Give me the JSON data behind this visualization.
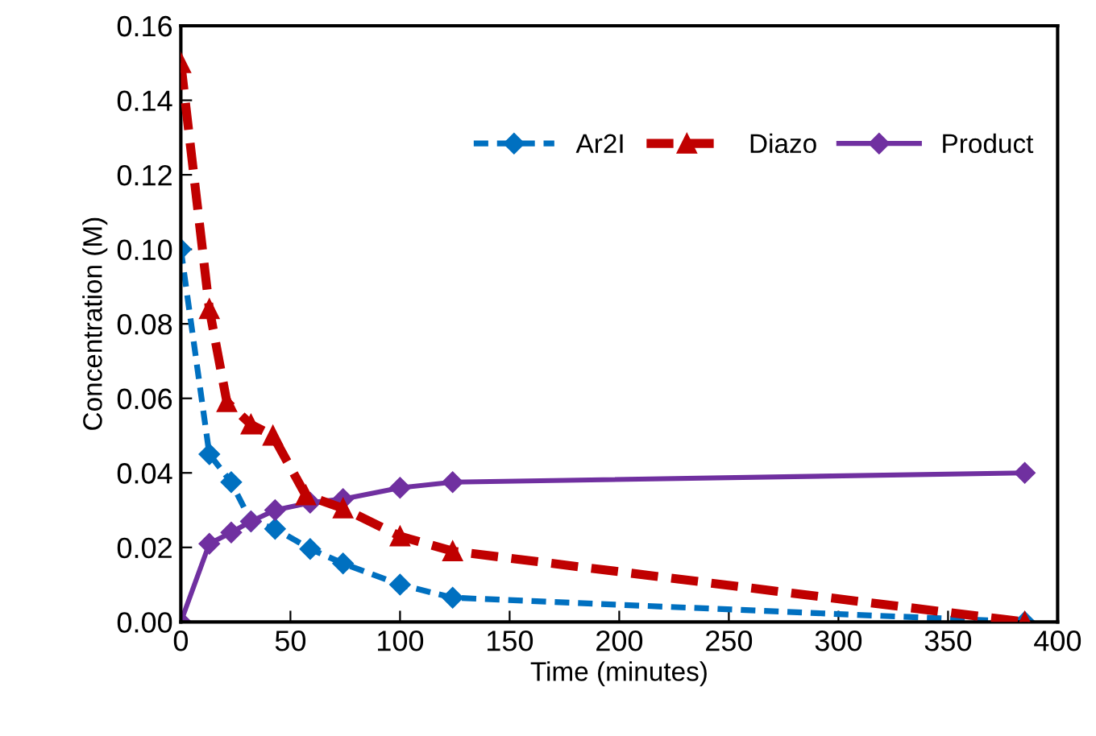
{
  "chart_data": {
    "type": "line",
    "xlabel": "Time (minutes)",
    "ylabel": "Concentration (M)",
    "xlim": [
      0,
      400
    ],
    "xticks": [
      0,
      50,
      100,
      150,
      200,
      250,
      300,
      350,
      400
    ],
    "ylim": [
      0,
      0.16
    ],
    "yticks": [
      {
        "value": 0,
        "label": "0.00"
      },
      {
        "value": 0.02,
        "label": "0.02"
      },
      {
        "value": 0.04,
        "label": "0.04"
      },
      {
        "value": 0.06,
        "label": "0.06"
      },
      {
        "value": 0.08,
        "label": "0.08"
      },
      {
        "value": 0.1,
        "label": "0.10"
      },
      {
        "value": 0.12,
        "label": "0.12"
      },
      {
        "value": 0.14,
        "label": "0.14"
      },
      {
        "value": 0.16,
        "label": "0.16"
      }
    ],
    "grid": false,
    "legend": "top right",
    "series": [
      {
        "name": "Ar2I",
        "color": "#0070c0",
        "marker": "diamond",
        "line_style": "dotted",
        "x": [
          0,
          13,
          23,
          32,
          43,
          59,
          74,
          100,
          124,
          385
        ],
        "values": [
          0.1,
          0.045,
          0.0375,
          0.027,
          0.025,
          0.0196,
          0.0157,
          0.01,
          0.0065,
          0.0
        ]
      },
      {
        "name": "Diazo",
        "color": "#c00000",
        "marker": "triangle",
        "line_style": "dashed",
        "x": [
          0,
          13,
          21,
          32,
          42,
          57,
          74,
          100,
          124,
          385
        ],
        "values": [
          0.15,
          0.084,
          0.059,
          0.053,
          0.05,
          0.034,
          0.0305,
          0.023,
          0.019,
          0.0
        ]
      },
      {
        "name": "Product",
        "color": "#7030a0",
        "marker": "diamond",
        "line_style": "solid",
        "x": [
          0,
          13,
          23,
          32,
          43,
          59,
          74,
          100,
          124,
          385
        ],
        "values": [
          0.0,
          0.021,
          0.024,
          0.027,
          0.03,
          0.032,
          0.033,
          0.036,
          0.0375,
          0.04
        ]
      }
    ]
  }
}
